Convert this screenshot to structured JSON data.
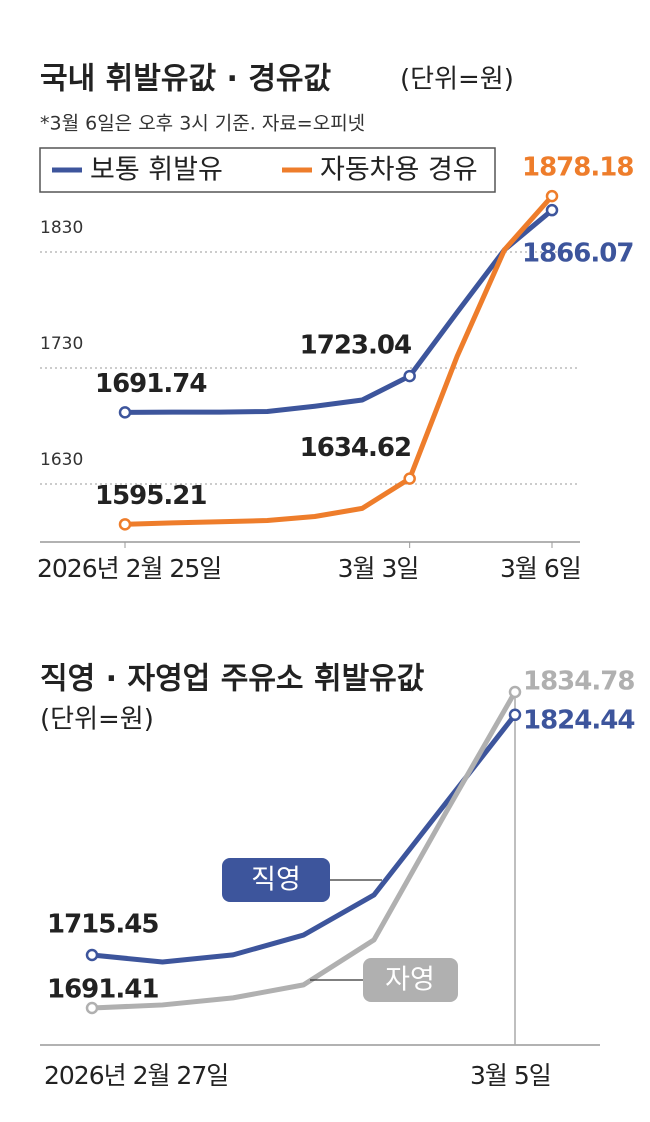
{
  "chart_data": [
    {
      "type": "line",
      "title": "국내 휘발유값 · 경유값",
      "unit": "(단위=원)",
      "subtitle": "*3월 6일은 오후 3시 기준. 자료=오피넷",
      "categories": [
        "2026년 2월 25일",
        null,
        null,
        null,
        null,
        null,
        "3월 3일",
        null,
        null,
        "3월 6일"
      ],
      "series": [
        {
          "name": "보통 휘발유",
          "color": "#3d559c",
          "values": [
            1691.74,
            1692,
            1692,
            1692.5,
            1697,
            1702.4,
            1723.04,
            1778,
            1832,
            1866.07
          ],
          "value_labels": [
            "1691.74",
            null,
            null,
            null,
            null,
            null,
            "1723.04",
            null,
            null,
            "1866.07"
          ]
        },
        {
          "name": "자동차용 경유",
          "color": "#ee7d2b",
          "values": [
            1595.21,
            1596.5,
            1597.5,
            1598.5,
            1602,
            1609,
            1634.62,
            1740,
            1832,
            1878.18
          ],
          "value_labels": [
            "1595.21",
            null,
            null,
            null,
            null,
            null,
            "1634.62",
            null,
            null,
            "1878.18"
          ]
        }
      ],
      "ylim": [
        1580,
        1880
      ],
      "yticks": [
        1630,
        1730,
        1830
      ],
      "grid": true
    },
    {
      "type": "line",
      "title": "직영 · 자영업 주유소 휘발유값",
      "unit": "(단위=원)",
      "categories": [
        "2026년 2월 27일",
        null,
        null,
        null,
        null,
        null,
        "3월 5일"
      ],
      "series": [
        {
          "name": "직영",
          "color": "#3d559c",
          "values": [
            1715.45,
            1712.3,
            1715.5,
            1724.5,
            1742.7,
            1783.6,
            1824.44
          ],
          "value_labels": [
            "1715.45",
            null,
            null,
            null,
            null,
            null,
            "1824.44"
          ]
        },
        {
          "name": "자영",
          "color": "#b0b0b0",
          "values": [
            1691.41,
            1692.8,
            1696,
            1701.9,
            1722.3,
            1779,
            1834.78
          ],
          "value_labels": [
            "1691.41",
            null,
            null,
            null,
            null,
            null,
            "1834.78"
          ]
        }
      ]
    }
  ]
}
